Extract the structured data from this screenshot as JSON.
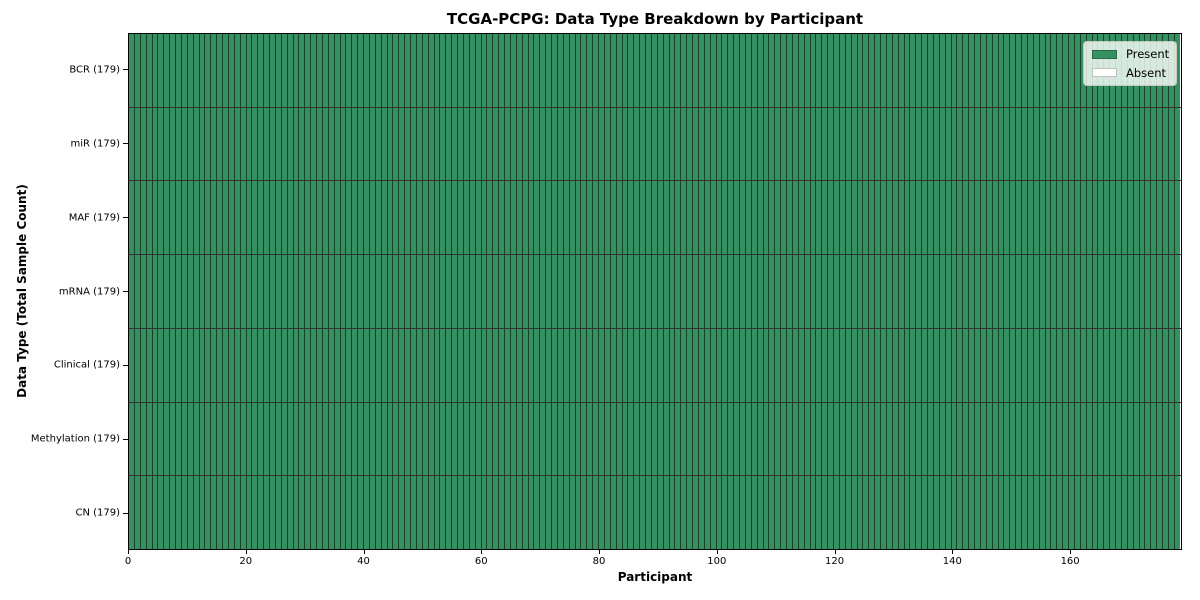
{
  "figure": {
    "title": "TCGA-PCPG: Data Type Breakdown by Participant",
    "xlabel": "Participant",
    "ylabel": "Data Type (Total Sample Count)"
  },
  "legend": {
    "entries": [
      {
        "label": "Present",
        "color": "#359161"
      },
      {
        "label": "Absent",
        "color": "#ffffff"
      }
    ]
  },
  "chart_data": {
    "type": "heatmap",
    "title": "TCGA-PCPG: Data Type Breakdown by Participant",
    "xlabel": "Participant",
    "ylabel": "Data Type (Total Sample Count)",
    "legend_position": "upper right",
    "participant_count": 179,
    "x_range": [
      0,
      179
    ],
    "x_ticks": [
      0,
      20,
      40,
      60,
      80,
      100,
      120,
      140,
      160
    ],
    "colors": {
      "present": "#359161",
      "absent": "#ffffff",
      "cell_edge": "rgba(0,0,0,0.55)",
      "row_edge": "rgba(0,0,0,0.8)"
    },
    "rows": [
      {
        "label": "BCR (179)",
        "data_type": "BCR",
        "total_samples": 179,
        "present": 179,
        "absent": 0
      },
      {
        "label": "miR (179)",
        "data_type": "miR",
        "total_samples": 179,
        "present": 179,
        "absent": 0
      },
      {
        "label": "MAF (179)",
        "data_type": "MAF",
        "total_samples": 179,
        "present": 179,
        "absent": 0
      },
      {
        "label": "mRNA (179)",
        "data_type": "mRNA",
        "total_samples": 179,
        "present": 179,
        "absent": 0
      },
      {
        "label": "Clinical (179)",
        "data_type": "Clinical",
        "total_samples": 179,
        "present": 179,
        "absent": 0
      },
      {
        "label": "Methylation (179)",
        "data_type": "Methylation",
        "total_samples": 179,
        "present": 179,
        "absent": 0
      },
      {
        "label": "CN (179)",
        "data_type": "CN",
        "total_samples": 179,
        "present": 179,
        "absent": 0
      }
    ]
  }
}
